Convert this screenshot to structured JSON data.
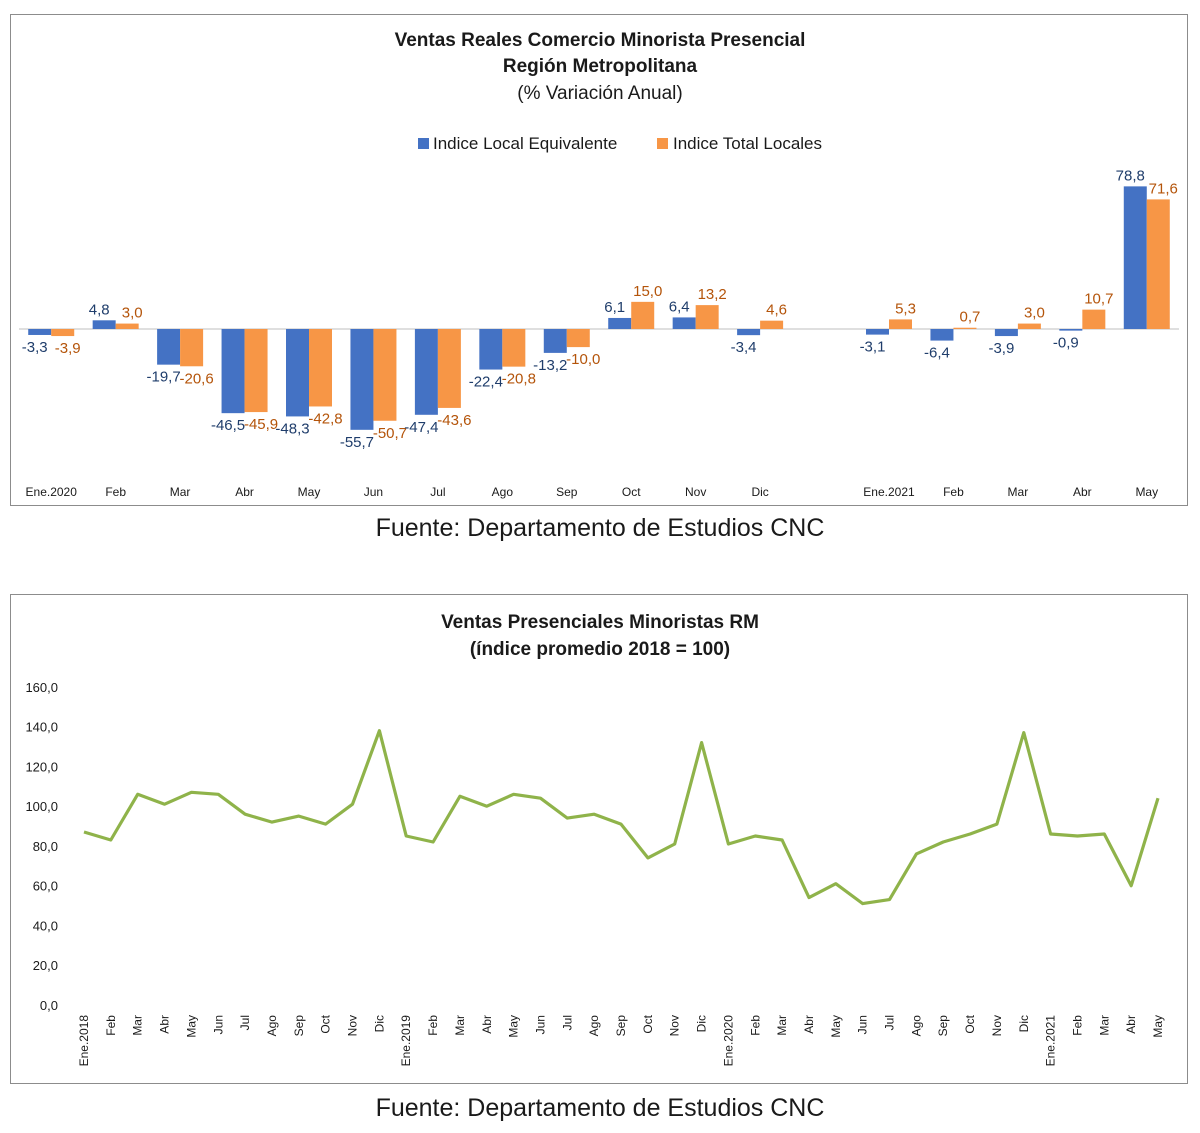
{
  "chart_data": [
    {
      "type": "bar",
      "title": "Ventas Reales Comercio Minorista Presencial",
      "title_line2": "Región Metropolitana",
      "subtitle": "(% Variación Anual)",
      "legend_position": "top",
      "categories": [
        "Ene.2020",
        "Feb",
        "Mar",
        "Abr",
        "May",
        "Jun",
        "Jul",
        "Ago",
        "Sep",
        "Oct",
        "Nov",
        "Dic",
        "",
        "Ene.2021",
        "Feb",
        "Mar",
        "Abr",
        "May"
      ],
      "series": [
        {
          "name": "Indice Local Equivalente",
          "color": "#4472c4",
          "label_color": "#1f3d6b",
          "values": [
            -3.3,
            4.8,
            -19.7,
            -46.5,
            -48.3,
            -55.7,
            -47.4,
            -22.4,
            -13.2,
            6.1,
            6.4,
            -3.4,
            null,
            -3.1,
            -6.4,
            -3.9,
            -0.9,
            78.8
          ],
          "labels": [
            "-3,3",
            "4,8",
            "-19,7",
            "-46,5",
            "-48,3",
            "-55,7",
            "-47,4",
            "-22,4",
            "-13,2",
            "6,1",
            "6,4",
            "-3,4",
            "",
            "-3,1",
            "-6,4",
            "-3,9",
            "-0,9",
            "78,8"
          ]
        },
        {
          "name": "Indice Total Locales",
          "color": "#f79646",
          "label_color": "#b4540a",
          "values": [
            -3.9,
            3.0,
            -20.6,
            -45.9,
            -42.8,
            -50.7,
            -43.6,
            -20.8,
            -10.0,
            15.0,
            13.2,
            4.6,
            null,
            5.3,
            0.7,
            3.0,
            10.7,
            71.6
          ],
          "labels": [
            "-3,9",
            "3,0",
            "-20,6",
            "-45,9",
            "-42,8",
            "-50,7",
            "-43,6",
            "-20,8",
            "-10,0",
            "15,0",
            "13,2",
            "4,6",
            "",
            "5,3",
            "0,7",
            "3,0",
            "10,7",
            "71,6"
          ]
        }
      ],
      "ylim": [
        -70,
        95
      ],
      "grid": false,
      "source": "Fuente: Departamento de Estudios CNC"
    },
    {
      "type": "line",
      "title": "Ventas Presenciales Minoristas RM",
      "subtitle": "(índice promedio 2018 = 100)",
      "color": "#8fb34a",
      "x": [
        "Ene.2018",
        "Feb",
        "Mar",
        "Abr",
        "May",
        "Jun",
        "Jul",
        "Ago",
        "Sep",
        "Oct",
        "Nov",
        "Dic",
        "Ene.2019",
        "Feb",
        "Mar",
        "Abr",
        "May",
        "Jun",
        "Jul",
        "Ago",
        "Sep",
        "Oct",
        "Nov",
        "Dic",
        "Ene.2020",
        "Feb",
        "Mar",
        "Abr",
        "May",
        "Jun",
        "Jul",
        "Ago",
        "Sep",
        "Oct",
        "Nov",
        "Dic",
        "Ene.2021",
        "Feb",
        "Mar",
        "Abr",
        "May"
      ],
      "values": [
        87,
        83,
        106,
        101,
        107,
        106,
        96,
        92,
        95,
        91,
        101,
        138,
        85,
        82,
        105,
        100,
        106,
        104,
        94,
        96,
        91,
        74,
        81,
        132,
        81,
        85,
        83,
        54,
        61,
        51,
        53,
        76,
        82,
        86,
        91,
        137,
        86,
        85,
        86,
        60,
        104
      ],
      "yticks": [
        "0,0",
        "20,0",
        "40,0",
        "60,0",
        "80,0",
        "100,0",
        "120,0",
        "140,0",
        "160,0"
      ],
      "ylim": [
        0,
        160
      ],
      "grid": false,
      "source": "Fuente: Departamento de Estudios CNC"
    }
  ]
}
